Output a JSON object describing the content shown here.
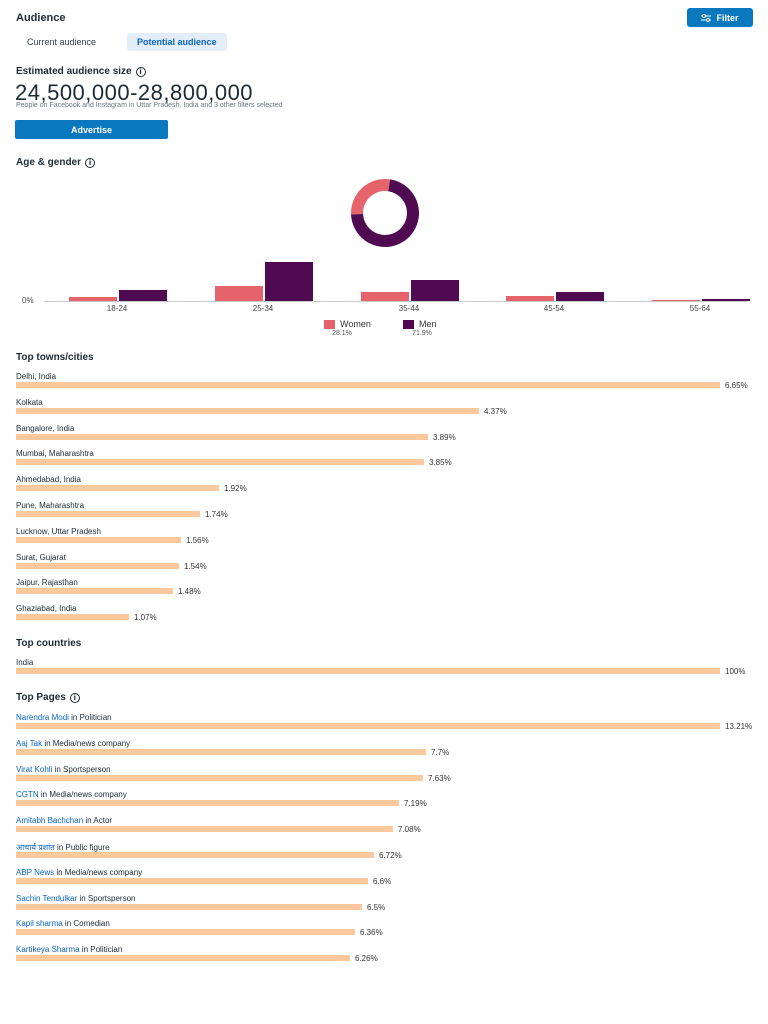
{
  "header": {
    "title": "Audience",
    "filter_label": "Filter",
    "tabs": [
      {
        "label": "Current audience",
        "active": false
      },
      {
        "label": "Potential audience",
        "active": true
      }
    ]
  },
  "estimate": {
    "heading": "Estimated audience size",
    "range": "24,500,000-28,800,000",
    "description": "People on Facebook and Instagram in Uttar Pradesh, India and 3 other filters selected",
    "advertise_label": "Advertise"
  },
  "age_gender": {
    "heading": "Age & gender",
    "axis_zero": "0%",
    "colors": {
      "women": "#e5636a",
      "men": "#4f0a52"
    },
    "legend": [
      {
        "label": "Women",
        "pct": "28.1%"
      },
      {
        "label": "Men",
        "pct": "71.9%"
      }
    ]
  },
  "chart_data": {
    "type": "bar",
    "categories": [
      "18-24",
      "25-34",
      "35-44",
      "45-54",
      "55-64"
    ],
    "series": [
      {
        "name": "Women",
        "values": [
          4,
          15,
          9,
          5,
          1
        ]
      },
      {
        "name": "Men",
        "values": [
          11,
          39,
          21,
          9,
          1.5
        ]
      }
    ],
    "ylim": [
      0,
      40
    ],
    "donut": [
      {
        "name": "Women",
        "value": 28.1
      },
      {
        "name": "Men",
        "value": 71.9
      }
    ]
  },
  "towns": {
    "heading": "Top towns/cities",
    "items": [
      {
        "label": "Delhi, India",
        "pct": "6.65%",
        "value": 6.65
      },
      {
        "label": "Kolkata",
        "pct": "4.37%",
        "value": 4.37
      },
      {
        "label": "Bangalore, India",
        "pct": "3.89%",
        "value": 3.89
      },
      {
        "label": "Mumbai, Maharashtra",
        "pct": "3.85%",
        "value": 3.85
      },
      {
        "label": "Ahmedabad, India",
        "pct": "1.92%",
        "value": 1.92
      },
      {
        "label": "Pune, Maharashtra",
        "pct": "1.74%",
        "value": 1.74
      },
      {
        "label": "Lucknow, Uttar Pradesh",
        "pct": "1.56%",
        "value": 1.56
      },
      {
        "label": "Surat, Gujarat",
        "pct": "1.54%",
        "value": 1.54
      },
      {
        "label": "Jaipur, Rajasthan",
        "pct": "1.48%",
        "value": 1.48
      },
      {
        "label": "Ghaziabad, India",
        "pct": "1.07%",
        "value": 1.07
      }
    ]
  },
  "countries": {
    "heading": "Top countries",
    "items": [
      {
        "label": "India",
        "pct": "100%",
        "value": 100
      }
    ]
  },
  "pages": {
    "heading": "Top Pages",
    "items": [
      {
        "name": "Narendra Modi",
        "category": " in Politician",
        "pct": "13.21%",
        "value": 13.21
      },
      {
        "name": "Aaj Tak",
        "category": " in Media/news company",
        "pct": "7.7%",
        "value": 7.7
      },
      {
        "name": "Virat Kohli",
        "category": " in Sportsperson",
        "pct": "7.63%",
        "value": 7.63
      },
      {
        "name": "CGTN",
        "category": " in Media/news company",
        "pct": "7.19%",
        "value": 7.19
      },
      {
        "name": "Amitabh Bachchan",
        "category": " in Actor",
        "pct": "7.08%",
        "value": 7.08
      },
      {
        "name": "आचार्य प्रशांत",
        "category": " in Public figure",
        "pct": "6.72%",
        "value": 6.72
      },
      {
        "name": "ABP News",
        "category": " in Media/news company",
        "pct": "6.6%",
        "value": 6.6
      },
      {
        "name": "Sachin Tendulkar",
        "category": " in Sportsperson",
        "pct": "6.5%",
        "value": 6.5
      },
      {
        "name": "Kapil sharma",
        "category": " in Comedian",
        "pct": "6.36%",
        "value": 6.36
      },
      {
        "name": "Kartikeya Sharma",
        "category": " in Politician",
        "pct": "6.26%",
        "value": 6.26
      }
    ]
  }
}
